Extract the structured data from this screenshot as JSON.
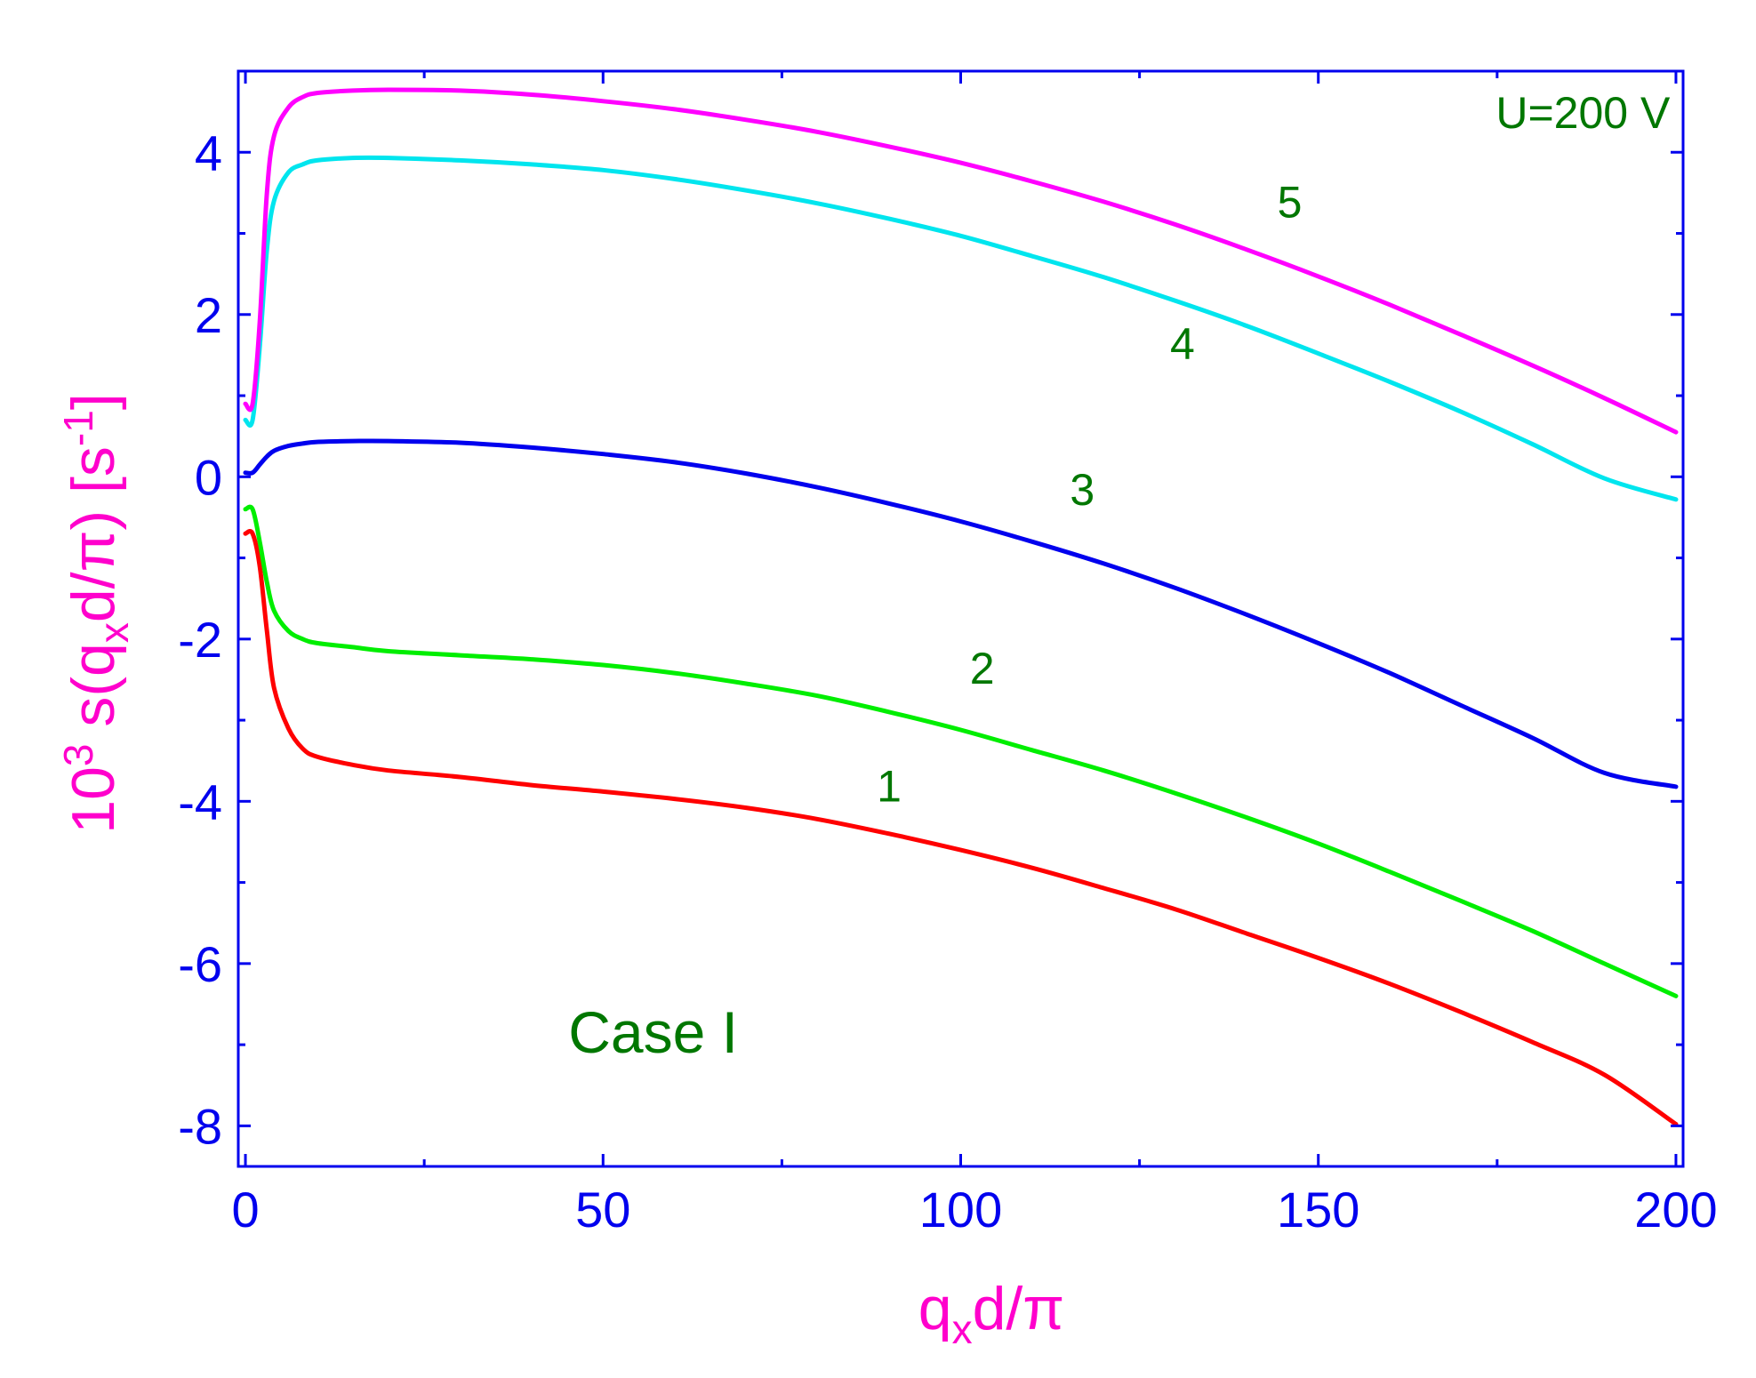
{
  "chart_data": {
    "type": "line",
    "title": "",
    "xlabel": {
      "main": "q",
      "sub": "x",
      "rest": "d/π"
    },
    "ylabel": {
      "prefix": "10",
      "prefix_sup": "3",
      "body": " s(q",
      "body_sub": "x",
      "body_rest": "d/π) [s",
      "unit_sup": "-1",
      "end": "]"
    },
    "xlim": [
      -1,
      201
    ],
    "ylim": [
      -8.5,
      5.0
    ],
    "xticks": [
      0,
      50,
      100,
      150,
      200
    ],
    "yticks": [
      -8,
      -6,
      -4,
      -2,
      0,
      2,
      4
    ],
    "grid": false,
    "legend": "none",
    "colors": {
      "axis": "#0000ee",
      "label": "#ff00cc",
      "annotation": "#007700"
    },
    "annotations": [
      {
        "text": "U=200 V",
        "x": 187,
        "y": 4.3
      },
      {
        "text": "Case I",
        "x": 57,
        "y": -7.1
      }
    ],
    "series": [
      {
        "label": "1",
        "color": "#ff0000",
        "label_pos": {
          "x": 90,
          "y": -4.0
        },
        "x": [
          0,
          1,
          2,
          3,
          4,
          6,
          8,
          10,
          15,
          20,
          30,
          40,
          50,
          60,
          70,
          80,
          90,
          100,
          110,
          120,
          130,
          140,
          150,
          160,
          170,
          180,
          190,
          200
        ],
        "y": [
          -0.7,
          -0.7,
          -1.1,
          -1.9,
          -2.6,
          -3.1,
          -3.35,
          -3.45,
          -3.55,
          -3.62,
          -3.7,
          -3.8,
          -3.88,
          -3.97,
          -4.08,
          -4.22,
          -4.4,
          -4.6,
          -4.82,
          -5.07,
          -5.33,
          -5.63,
          -5.93,
          -6.25,
          -6.6,
          -6.97,
          -7.37,
          -7.98
        ]
      },
      {
        "label": "2",
        "color": "#00ee00",
        "label_pos": {
          "x": 103,
          "y": -2.55
        },
        "x": [
          0,
          1,
          2,
          3,
          4,
          6,
          8,
          10,
          15,
          20,
          30,
          40,
          50,
          60,
          70,
          80,
          90,
          100,
          110,
          120,
          130,
          140,
          150,
          160,
          170,
          180,
          190,
          200
        ],
        "y": [
          -0.4,
          -0.4,
          -0.8,
          -1.3,
          -1.65,
          -1.9,
          -2.0,
          -2.05,
          -2.1,
          -2.15,
          -2.2,
          -2.25,
          -2.32,
          -2.42,
          -2.55,
          -2.7,
          -2.9,
          -3.12,
          -3.37,
          -3.62,
          -3.9,
          -4.2,
          -4.52,
          -4.87,
          -5.23,
          -5.6,
          -6.0,
          -6.4
        ]
      },
      {
        "label": "3",
        "color": "#0000ee",
        "label_pos": {
          "x": 117,
          "y": -0.35
        },
        "x": [
          0,
          1,
          2,
          3,
          4,
          6,
          8,
          10,
          15,
          20,
          30,
          40,
          50,
          60,
          70,
          80,
          90,
          100,
          110,
          120,
          130,
          140,
          150,
          160,
          170,
          180,
          190,
          200
        ],
        "y": [
          0.05,
          0.05,
          0.15,
          0.25,
          0.32,
          0.38,
          0.41,
          0.43,
          0.44,
          0.44,
          0.42,
          0.36,
          0.28,
          0.18,
          0.04,
          -0.13,
          -0.33,
          -0.55,
          -0.8,
          -1.07,
          -1.37,
          -1.7,
          -2.05,
          -2.42,
          -2.82,
          -3.22,
          -3.65,
          -3.82
        ]
      },
      {
        "label": "4",
        "color": "#00e5ee",
        "label_pos": {
          "x": 131,
          "y": 1.45
        },
        "x": [
          0,
          1,
          2,
          3,
          4,
          6,
          8,
          10,
          15,
          20,
          30,
          40,
          50,
          60,
          70,
          80,
          90,
          100,
          110,
          120,
          130,
          140,
          150,
          160,
          170,
          180,
          190,
          200
        ],
        "y": [
          0.7,
          0.7,
          1.6,
          2.8,
          3.4,
          3.75,
          3.85,
          3.9,
          3.93,
          3.93,
          3.9,
          3.85,
          3.78,
          3.67,
          3.53,
          3.37,
          3.18,
          2.97,
          2.72,
          2.46,
          2.17,
          1.86,
          1.52,
          1.17,
          0.8,
          0.4,
          -0.02,
          -0.28
        ]
      },
      {
        "label": "5",
        "color": "#ff00ff",
        "label_pos": {
          "x": 146,
          "y": 3.2
        },
        "x": [
          0,
          1,
          2,
          3,
          4,
          6,
          8,
          10,
          15,
          20,
          30,
          40,
          50,
          60,
          70,
          80,
          90,
          100,
          110,
          120,
          130,
          140,
          150,
          160,
          170,
          180,
          190,
          200
        ],
        "y": [
          0.9,
          0.9,
          1.9,
          3.5,
          4.2,
          4.55,
          4.68,
          4.73,
          4.76,
          4.77,
          4.76,
          4.71,
          4.63,
          4.53,
          4.4,
          4.25,
          4.07,
          3.87,
          3.64,
          3.39,
          3.11,
          2.8,
          2.47,
          2.12,
          1.75,
          1.37,
          0.97,
          0.55
        ]
      }
    ]
  }
}
